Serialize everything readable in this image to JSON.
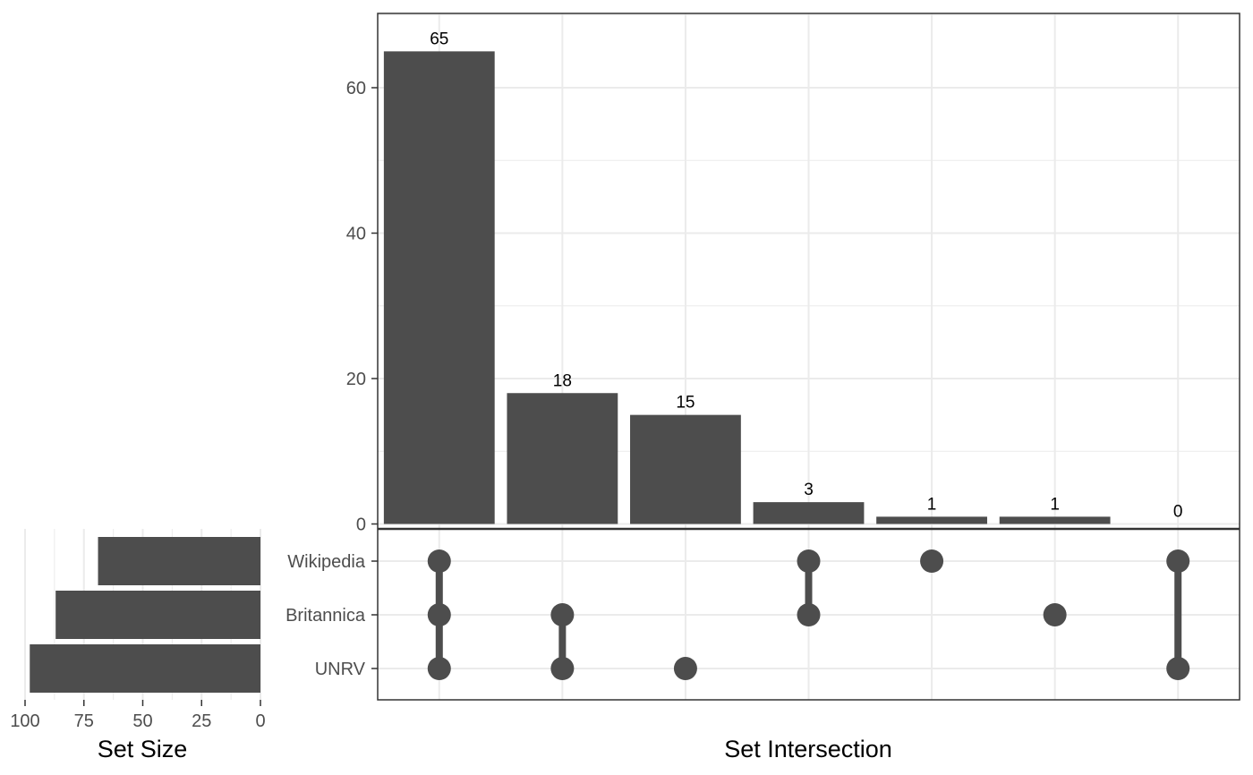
{
  "chart_data": {
    "type": "bar",
    "subtype": "upset",
    "intersections": {
      "ylim": [
        0,
        70
      ],
      "yticks": [
        0,
        20,
        40,
        60
      ],
      "ytick_labels": [
        "0",
        "20",
        "40",
        "60"
      ],
      "xlabel": "Set Intersection",
      "bars": [
        {
          "value": 65,
          "label": "65",
          "members": [
            "Wikipedia",
            "Britannica",
            "UNRV"
          ]
        },
        {
          "value": 18,
          "label": "18",
          "members": [
            "Britannica",
            "UNRV"
          ]
        },
        {
          "value": 15,
          "label": "15",
          "members": [
            "UNRV"
          ]
        },
        {
          "value": 3,
          "label": "3",
          "members": [
            "Wikipedia",
            "Britannica"
          ]
        },
        {
          "value": 1,
          "label": "1",
          "members": [
            "Wikipedia"
          ]
        },
        {
          "value": 1,
          "label": "1",
          "members": [
            "Britannica"
          ]
        },
        {
          "value": 0,
          "label": "0",
          "members": [
            "Wikipedia",
            "UNRV"
          ]
        }
      ]
    },
    "set_sizes": {
      "xlabel": "Set Size",
      "xlim": [
        100,
        0
      ],
      "xticks": [
        100,
        75,
        50,
        25,
        0
      ],
      "xtick_labels": [
        "100",
        "75",
        "50",
        "25",
        "0"
      ],
      "sets": [
        {
          "name": "Wikipedia",
          "value": 69
        },
        {
          "name": "Britannica",
          "value": 87
        },
        {
          "name": "UNRV",
          "value": 98
        }
      ]
    },
    "grid": true,
    "colors": {
      "bar": "#4d4d4d",
      "dot": "#4d4d4d",
      "grid": "#ebebeb",
      "panel_border": "#333333"
    }
  }
}
